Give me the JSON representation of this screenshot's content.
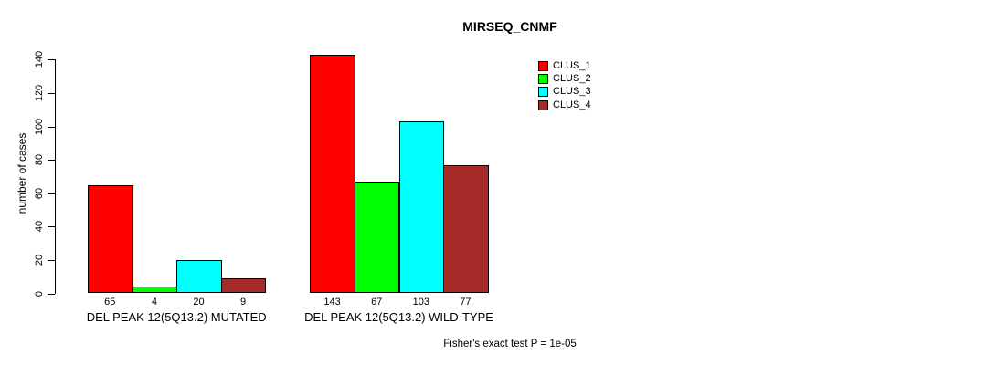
{
  "title": "MIRSEQ_CNMF",
  "y_axis": {
    "label": "number of cases",
    "ticks": [
      0,
      20,
      40,
      60,
      80,
      100,
      120,
      140
    ]
  },
  "legend": {
    "items": [
      {
        "label": "CLUS_1",
        "color": "#FF0000"
      },
      {
        "label": "CLUS_2",
        "color": "#00FF00"
      },
      {
        "label": "CLUS_3",
        "color": "#00FFFF"
      },
      {
        "label": "CLUS_4",
        "color": "#A52A2A"
      }
    ]
  },
  "chart_data": {
    "type": "bar",
    "title": "MIRSEQ_CNMF",
    "xlabel": "",
    "ylabel": "number of cases",
    "ylim": [
      0,
      140
    ],
    "yticks": [
      0,
      20,
      40,
      60,
      80,
      100,
      120,
      140
    ],
    "grid": false,
    "legend_position": "upper-right",
    "categories": [
      "DEL PEAK 12(5Q13.2) MUTATED",
      "DEL PEAK 12(5Q13.2) WILD-TYPE"
    ],
    "series": [
      {
        "name": "CLUS_1",
        "color": "#FF0000",
        "values": [
          65,
          143
        ]
      },
      {
        "name": "CLUS_2",
        "color": "#00FF00",
        "values": [
          4,
          67
        ]
      },
      {
        "name": "CLUS_3",
        "color": "#00FFFF",
        "values": [
          20,
          103
        ]
      },
      {
        "name": "CLUS_4",
        "color": "#A52A2A",
        "values": [
          9,
          77
        ]
      }
    ],
    "bar_value_labels": [
      [
        65,
        4,
        20,
        9
      ],
      [
        143,
        67,
        103,
        77
      ]
    ],
    "annotation": "Fisher's exact test P = 1e-05"
  }
}
